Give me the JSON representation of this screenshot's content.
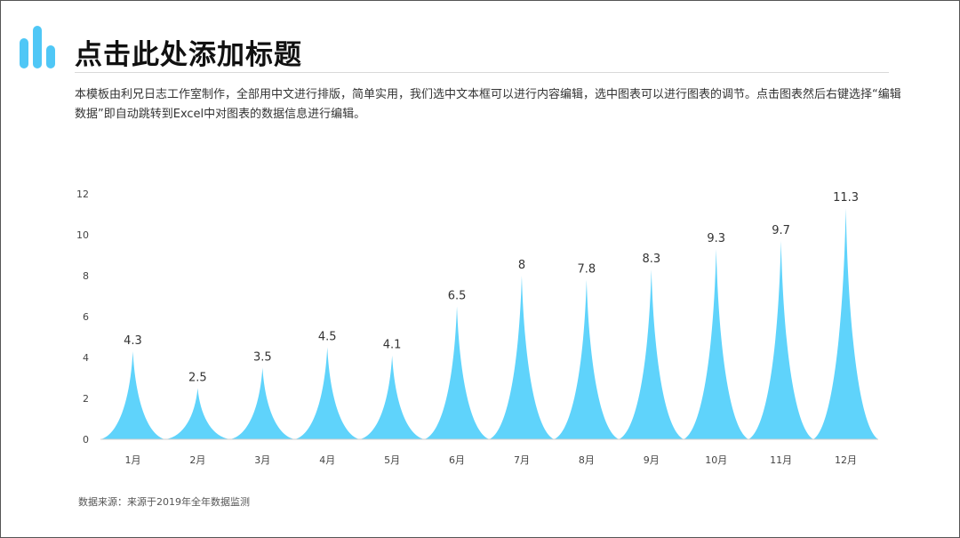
{
  "header": {
    "title": "点击此处添加标题",
    "description": "本模板由利兄日志工作室制作，全部用中文进行排版，简单实用，我们选中文本框可以进行内容编辑，选中图表可以进行图表的调节。点击图表然后右键选择“编辑数据”即自动跳转到Excel中对图表的数据信息进行编辑。"
  },
  "colors": {
    "accent": "#4fc7f6",
    "spike": "#5fd3fb"
  },
  "chart_data": {
    "type": "area",
    "categories": [
      "1月",
      "2月",
      "3月",
      "4月",
      "5月",
      "6月",
      "7月",
      "8月",
      "9月",
      "10月",
      "11月",
      "12月"
    ],
    "values": [
      4.3,
      2.5,
      3.5,
      4.5,
      4.1,
      6.5,
      8,
      7.8,
      8.3,
      9.3,
      9.7,
      11.3
    ],
    "labels": [
      "4.3",
      "2.5",
      "3.5",
      "4.5",
      "4.1",
      "6.5",
      "8",
      "7.8",
      "8.3",
      "9.3",
      "9.7",
      "11.3"
    ],
    "y_ticks": [
      "0",
      "2",
      "4",
      "6",
      "8",
      "10",
      "12"
    ],
    "ylim": [
      0,
      12
    ],
    "grid": false,
    "legend": "none"
  },
  "footer": {
    "source": "数据来源：来源于2019年全年数据监测"
  }
}
